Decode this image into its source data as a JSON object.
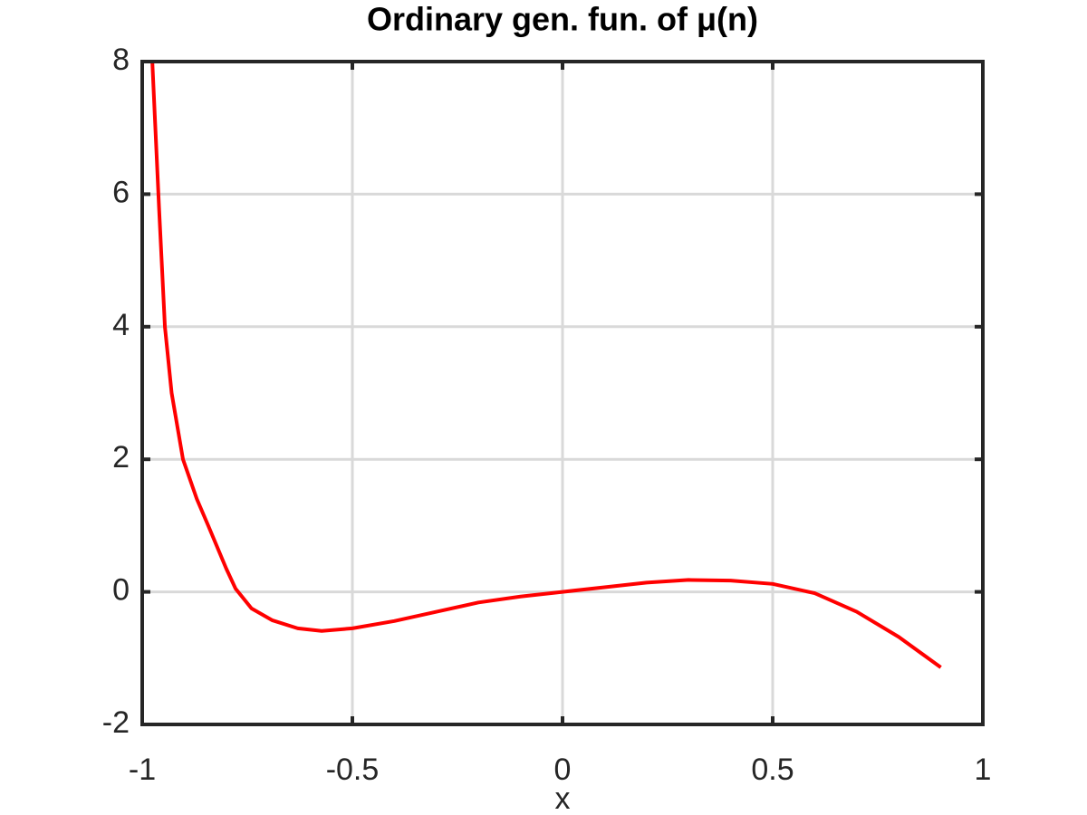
{
  "chart_data": {
    "type": "line",
    "title": "Ordinary gen. fun. of μ(n)",
    "x_label": "x",
    "x": [
      -0.976,
      -0.96,
      -0.946,
      -0.93,
      -0.903,
      -0.87,
      -0.843,
      -0.8,
      -0.778,
      -0.74,
      -0.69,
      -0.63,
      -0.573,
      -0.5,
      -0.4,
      -0.3,
      -0.2,
      -0.1,
      0,
      0.1,
      0.2,
      0.3,
      0.4,
      0.5,
      0.6,
      0.7,
      0.8,
      0.9
    ],
    "series": [
      {
        "color": "#ff0000",
        "values": [
          8,
          5.8,
          4,
          3,
          2,
          1.4,
          1.0,
          0.35,
          0.05,
          -0.25,
          -0.43,
          -0.55,
          -0.59,
          -0.55,
          -0.44,
          -0.3,
          -0.16,
          -0.07,
          0,
          0.07,
          0.14,
          0.18,
          0.17,
          0.12,
          -0.02,
          -0.3,
          -0.68,
          -1.14
        ]
      }
    ],
    "xlim": [
      -1,
      1
    ],
    "xticks": [
      -1,
      -0.5,
      0,
      0.5,
      1
    ],
    "ylim": [
      -2,
      8
    ],
    "yticks": [
      -2,
      0,
      2,
      4,
      6,
      8
    ],
    "grid": true
  }
}
